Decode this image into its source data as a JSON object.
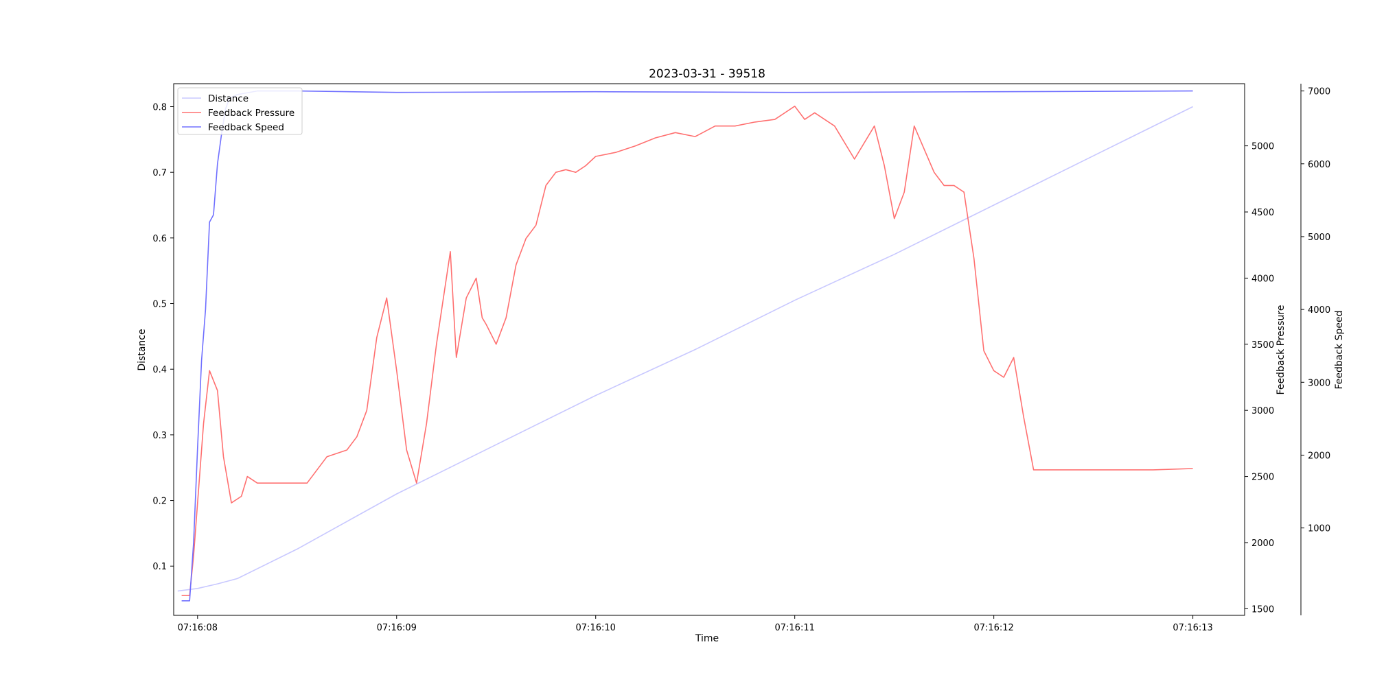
{
  "chart_data": {
    "type": "line",
    "title": "2023-03-31 - 39518",
    "xlabel": "Time",
    "x_ticks": [
      "07:16:08",
      "07:16:09",
      "07:16:10",
      "07:16:11",
      "07:16:12",
      "07:16:13"
    ],
    "xlim": [
      -0.12,
      5.26
    ],
    "axes": {
      "left": {
        "label": "Distance",
        "ylim": [
          0.025,
          0.835
        ],
        "ticks": [
          "0.1",
          "0.2",
          "0.3",
          "0.4",
          "0.5",
          "0.6",
          "0.7",
          "0.8"
        ]
      },
      "right1": {
        "label": "Feedback Pressure",
        "ylim": [
          1450,
          5470
        ],
        "ticks": [
          "1500",
          "2000",
          "2500",
          "3000",
          "3500",
          "4000",
          "4500",
          "5000"
        ]
      },
      "right2": {
        "label": "Feedback Speed",
        "ylim": [
          -200,
          7100
        ],
        "ticks": [
          "1000",
          "2000",
          "3000",
          "4000",
          "5000",
          "6000",
          "7000"
        ]
      }
    },
    "legend": {
      "position": "top-left",
      "entries": [
        "Distance",
        "Feedback Pressure",
        "Feedback Speed"
      ]
    },
    "grid": false,
    "series": [
      {
        "name": "Distance",
        "axis": "left",
        "color": "#c8c8ff",
        "x": [
          -0.1,
          0.0,
          0.1,
          0.2,
          0.5,
          1.0,
          1.5,
          2.0,
          2.5,
          3.0,
          3.5,
          4.0,
          4.5,
          5.0
        ],
        "y": [
          0.062,
          0.066,
          0.073,
          0.081,
          0.126,
          0.21,
          0.285,
          0.36,
          0.43,
          0.505,
          0.575,
          0.65,
          0.725,
          0.8
        ]
      },
      {
        "name": "Feedback Pressure",
        "axis": "right1",
        "color": "#ff7070",
        "x": [
          -0.08,
          -0.04,
          -0.02,
          0.0,
          0.03,
          0.06,
          0.1,
          0.13,
          0.17,
          0.22,
          0.25,
          0.3,
          0.38,
          0.45,
          0.55,
          0.65,
          0.75,
          0.8,
          0.85,
          0.9,
          0.95,
          1.0,
          1.05,
          1.1,
          1.15,
          1.2,
          1.27,
          1.3,
          1.35,
          1.4,
          1.43,
          1.45,
          1.5,
          1.55,
          1.6,
          1.65,
          1.7,
          1.75,
          1.8,
          1.85,
          1.9,
          1.95,
          2.0,
          2.1,
          2.2,
          2.3,
          2.4,
          2.5,
          2.6,
          2.7,
          2.8,
          2.9,
          3.0,
          3.05,
          3.1,
          3.2,
          3.3,
          3.4,
          3.45,
          3.5,
          3.55,
          3.6,
          3.7,
          3.75,
          3.8,
          3.85,
          3.9,
          3.95,
          4.0,
          4.05,
          4.1,
          4.15,
          4.2,
          4.3,
          4.5,
          4.8,
          5.0
        ],
        "y": [
          1600,
          1600,
          1900,
          2300,
          2900,
          3300,
          3150,
          2650,
          2300,
          2350,
          2500,
          2450,
          2450,
          2450,
          2450,
          2650,
          2700,
          2800,
          3000,
          3550,
          3850,
          3300,
          2700,
          2450,
          2900,
          3500,
          4200,
          3400,
          3850,
          4000,
          3700,
          3650,
          3500,
          3700,
          4100,
          4300,
          4400,
          4700,
          4800,
          4820,
          4800,
          4850,
          4920,
          4950,
          5000,
          5060,
          5100,
          5070,
          5150,
          5150,
          5180,
          5200,
          5300,
          5200,
          5250,
          5150,
          4900,
          5150,
          4850,
          4450,
          4650,
          5150,
          4800,
          4700,
          4700,
          4650,
          4150,
          3450,
          3300,
          3250,
          3400,
          2950,
          2550,
          2550,
          2550,
          2550,
          2560
        ]
      },
      {
        "name": "Feedback Speed",
        "axis": "right2",
        "color": "#7070ff",
        "x": [
          -0.08,
          -0.04,
          -0.02,
          0.0,
          0.02,
          0.04,
          0.06,
          0.08,
          0.1,
          0.12,
          0.14,
          0.16,
          0.2,
          0.3,
          0.5,
          1.0,
          2.0,
          3.0,
          4.0,
          5.0
        ],
        "y": [
          0,
          0,
          800,
          2100,
          3300,
          4000,
          5200,
          5300,
          6000,
          6400,
          6750,
          6900,
          6950,
          7000,
          7000,
          6980,
          6990,
          6980,
          6990,
          7000
        ]
      }
    ]
  }
}
